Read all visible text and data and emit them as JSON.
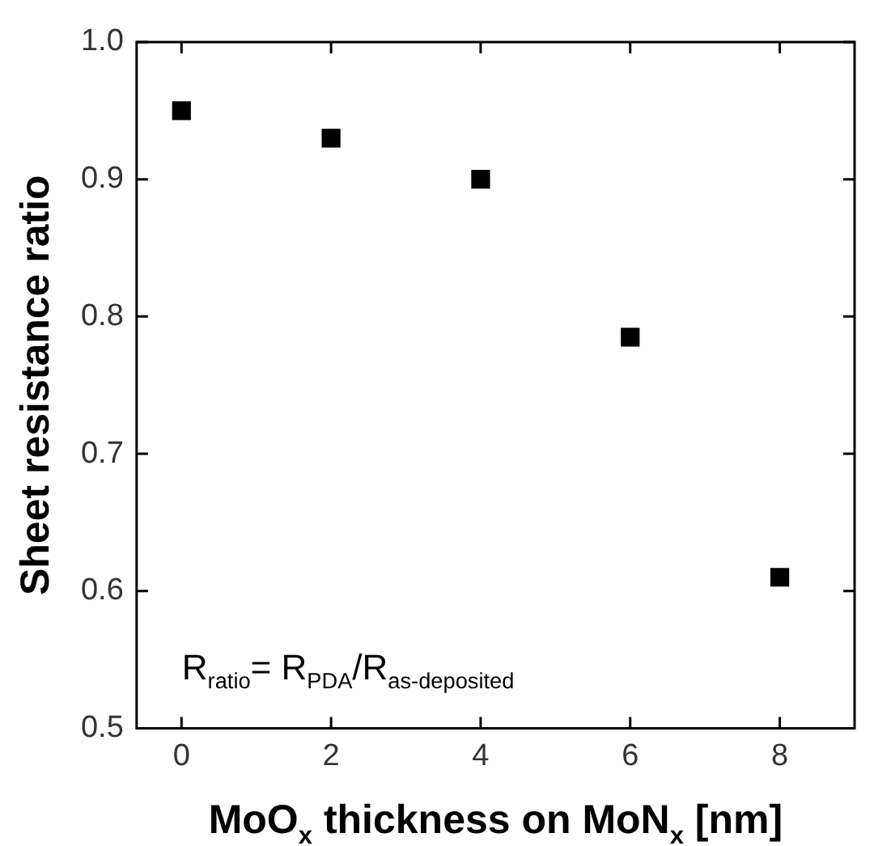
{
  "chart_data": {
    "type": "scatter",
    "xlabel": "MoO$_{x}$ thickness on MoN$_{x}$ [nm]",
    "ylabel": "Sheet resistance ratio",
    "x": [
      0,
      2,
      4,
      6,
      8
    ],
    "series": [
      {
        "color": "#000000",
        "values": [
          0.95,
          0.93,
          0.9,
          0.785,
          0.61
        ]
      }
    ],
    "xlim": [
      -0.6,
      9
    ],
    "xticks": [
      0,
      2,
      4,
      6,
      8
    ],
    "ylim": [
      0.5,
      1.0
    ],
    "yticks": [
      0.5,
      0.6,
      0.7,
      0.8,
      0.9,
      {
        "value": 1,
        "label": "1.0"
      }
    ],
    "annotations": [
      "R$_{ratio}$= R$_{PDA}$/R$_{as-deposited}$"
    ],
    "marker": "square",
    "grid": false,
    "legend": false
  }
}
